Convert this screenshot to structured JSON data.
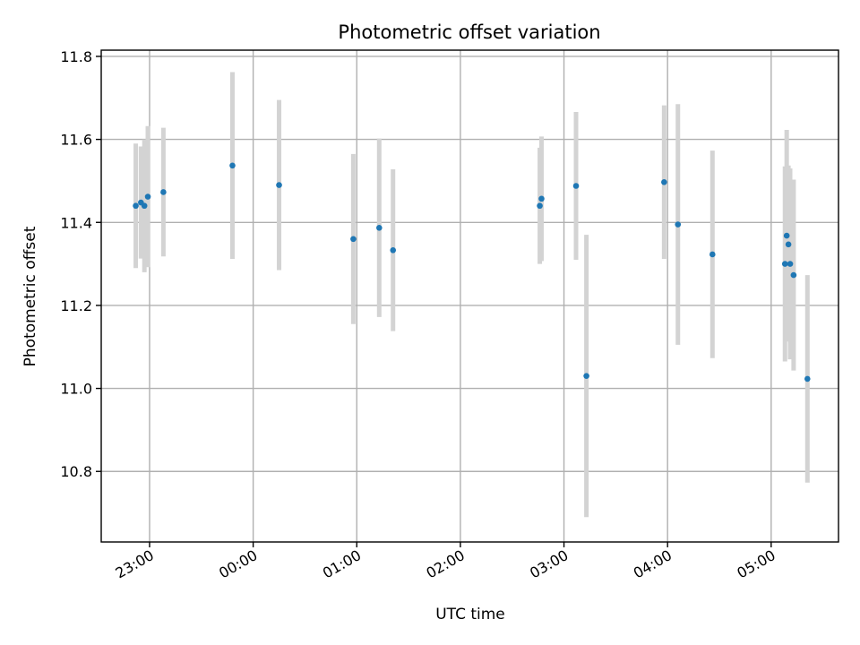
{
  "chart_data": {
    "type": "scatter",
    "title": "Photometric offset variation",
    "xlabel": "UTC time",
    "ylabel": "Photometric offset",
    "x_axis": "time of day (UTC), minutes after 22:00 of the first night; values past 24:00 fall on the next day",
    "xlim": [
      "22:32",
      "05:39"
    ],
    "ylim": [
      10.63,
      11.815
    ],
    "x_ticks": [
      "23:00",
      "00:00",
      "01:00",
      "02:00",
      "03:00",
      "04:00",
      "05:00"
    ],
    "y_ticks": [
      "10.8",
      "11.0",
      "11.2",
      "11.4",
      "11.6",
      "11.8"
    ],
    "grid": true,
    "colors": {
      "point": "#1f77b4",
      "errorbar": "#d3d3d3"
    },
    "series": [
      {
        "points": [
          {
            "x": "22:52",
            "y": 11.44,
            "yerr": 0.15
          },
          {
            "x": "22:55",
            "y": 11.448,
            "yerr": 0.135
          },
          {
            "x": "22:57",
            "y": 11.44,
            "yerr": 0.16
          },
          {
            "x": "22:59",
            "y": 11.462,
            "yerr": 0.17
          },
          {
            "x": "23:08",
            "y": 11.473,
            "yerr": 0.155
          },
          {
            "x": "23:48",
            "y": 11.537,
            "yerr": 0.225
          },
          {
            "x": "00:15",
            "y": 11.49,
            "yerr": 0.205
          },
          {
            "x": "00:58",
            "y": 11.36,
            "yerr": 0.205
          },
          {
            "x": "01:13",
            "y": 11.387,
            "yerr": 0.215
          },
          {
            "x": "01:21",
            "y": 11.333,
            "yerr": 0.195
          },
          {
            "x": "02:46",
            "y": 11.44,
            "yerr": 0.14
          },
          {
            "x": "02:47",
            "y": 11.457,
            "yerr": 0.15
          },
          {
            "x": "03:07",
            "y": 11.488,
            "yerr": 0.178
          },
          {
            "x": "03:13",
            "y": 11.03,
            "yerr": 0.34
          },
          {
            "x": "03:58",
            "y": 11.497,
            "yerr": 0.185
          },
          {
            "x": "04:06",
            "y": 11.395,
            "yerr": 0.29
          },
          {
            "x": "04:26",
            "y": 11.323,
            "yerr": 0.25
          },
          {
            "x": "05:08",
            "y": 11.3,
            "yerr": 0.235
          },
          {
            "x": "05:09",
            "y": 11.368,
            "yerr": 0.255
          },
          {
            "x": "05:10",
            "y": 11.347,
            "yerr": 0.19
          },
          {
            "x": "05:11",
            "y": 11.3,
            "yerr": 0.23
          },
          {
            "x": "05:13",
            "y": 11.273,
            "yerr": 0.23
          },
          {
            "x": "05:21",
            "y": 11.023,
            "yerr": 0.25
          }
        ]
      }
    ]
  }
}
